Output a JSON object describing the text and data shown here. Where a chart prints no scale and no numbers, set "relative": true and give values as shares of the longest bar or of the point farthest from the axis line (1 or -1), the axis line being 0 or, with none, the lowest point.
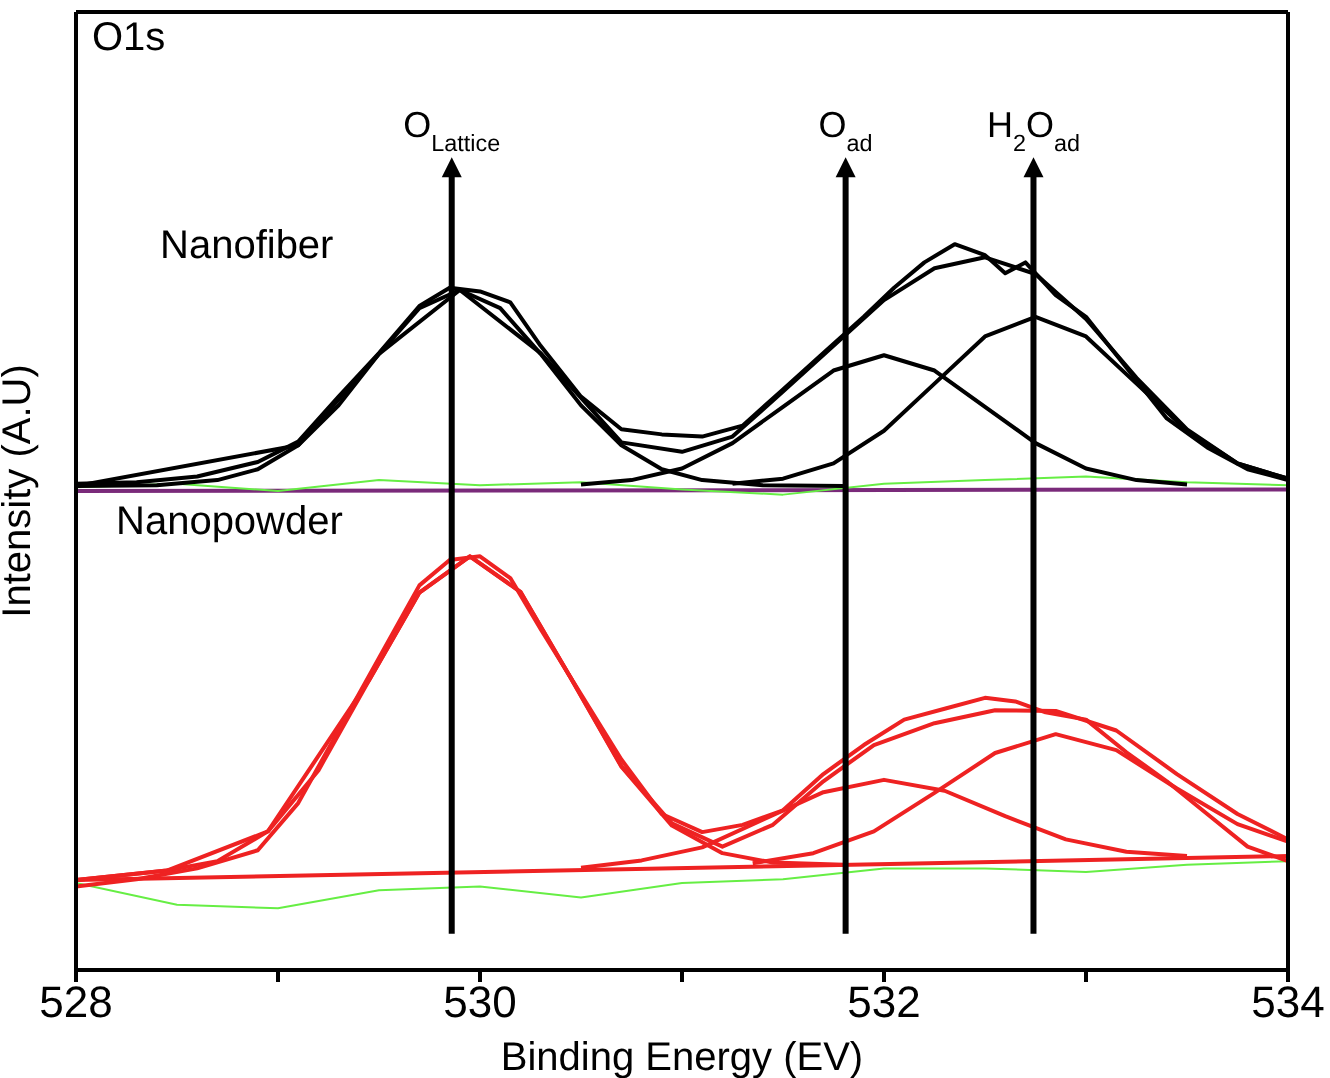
{
  "chart_data": {
    "type": "line",
    "relative": true,
    "xlabel": "Binding Energy (EV)",
    "ylabel": "Intensity (A.U)",
    "xlim": [
      528,
      534
    ],
    "xticks": [
      528,
      {
        "value": 529,
        "label": null
      },
      530,
      {
        "value": 531,
        "label": null
      },
      532,
      {
        "value": 533,
        "label": null
      },
      534
    ],
    "annotations": [
      "O1s",
      "Nanofiber",
      "Nanopowder"
    ],
    "ref_lines": [
      {
        "axis": "x",
        "value": 529.86,
        "label": "O$_{Lattice}$",
        "color": "#000000"
      },
      {
        "axis": "x",
        "value": 531.81,
        "label": "O$_{ad}$",
        "color": "#000000"
      },
      {
        "axis": "x",
        "value": 532.74,
        "label": "H$_{2}$O$_{ad}$",
        "color": "#000000"
      }
    ],
    "series": [
      {
        "color": "#7a2a7a",
        "x": [
          528,
          534
        ],
        "values": [
          0.66,
          0.662
        ]
      },
      {
        "color": "#66ee44",
        "x": [
          528,
          528.5,
          529,
          529.5,
          530,
          530.5,
          531,
          531.5,
          532,
          532.5,
          533,
          533.5,
          534
        ],
        "values": [
          0.665,
          0.67,
          0.66,
          0.675,
          0.668,
          0.672,
          0.662,
          0.655,
          0.67,
          0.675,
          0.68,
          0.672,
          0.668
        ]
      },
      {
        "color": "#66ee44",
        "x": [
          528,
          528.5,
          529,
          529.5,
          530,
          530.5,
          531,
          531.5,
          532,
          532.5,
          533,
          533.5,
          534
        ],
        "values": [
          0.12,
          0.09,
          0.085,
          0.11,
          0.115,
          0.1,
          0.12,
          0.125,
          0.14,
          0.14,
          0.135,
          0.145,
          0.15
        ]
      },
      {
        "color": "#000000",
        "x": [
          528,
          528.4,
          528.7,
          528.9,
          529.1,
          529.3,
          529.5,
          529.7,
          529.9,
          530.1,
          530.3,
          530.5,
          530.7,
          530.9,
          531.1,
          531.4,
          531.8
        ],
        "values": [
          0.667,
          0.668,
          0.675,
          0.69,
          0.723,
          0.778,
          0.849,
          0.912,
          0.937,
          0.912,
          0.849,
          0.778,
          0.723,
          0.69,
          0.675,
          0.668,
          0.667
        ]
      },
      {
        "color": "#000000",
        "x": [
          530.5,
          530.75,
          531,
          531.25,
          531.5,
          531.75,
          532,
          532.25,
          532.5,
          532.75,
          533,
          533.25,
          533.5
        ],
        "values": [
          0.669,
          0.675,
          0.691,
          0.726,
          0.776,
          0.826,
          0.847,
          0.826,
          0.776,
          0.726,
          0.691,
          0.675,
          0.669
        ]
      },
      {
        "color": "#000000",
        "x": [
          531.25,
          531.5,
          531.75,
          532,
          532.25,
          532.5,
          532.75,
          533,
          533.25,
          533.5,
          533.75,
          534
        ],
        "values": [
          0.67,
          0.677,
          0.698,
          0.743,
          0.808,
          0.873,
          0.9,
          0.873,
          0.808,
          0.743,
          0.698,
          0.677
        ]
      },
      {
        "color": "#000000",
        "x": [
          528,
          529.1,
          529.5,
          529.9,
          530.3,
          530.7,
          531,
          531.25,
          531.5,
          531.75,
          532,
          532.25,
          532.5,
          532.75,
          533,
          533.25,
          533.5,
          533.75,
          534
        ],
        "values": [
          0.667,
          0.723,
          0.849,
          0.937,
          0.85,
          0.727,
          0.714,
          0.735,
          0.797,
          0.86,
          0.923,
          0.967,
          0.982,
          0.959,
          0.897,
          0.816,
          0.745,
          0.698,
          0.677
        ]
      },
      {
        "color": "#000000",
        "x": [
          528,
          528.3,
          528.6,
          528.9,
          529.1,
          529.3,
          529.5,
          529.7,
          529.85,
          530,
          530.15,
          530.3,
          530.5,
          530.7,
          530.9,
          531.1,
          531.3,
          531.5,
          531.7,
          531.9,
          532.05,
          532.2,
          532.35,
          532.5,
          532.6,
          532.7,
          532.85,
          533,
          533.2,
          533.4,
          533.6,
          533.8,
          534
        ],
        "values": [
          0.67,
          0.672,
          0.68,
          0.7,
          0.728,
          0.79,
          0.85,
          0.915,
          0.94,
          0.935,
          0.92,
          0.86,
          0.79,
          0.745,
          0.738,
          0.735,
          0.75,
          0.8,
          0.85,
          0.9,
          0.94,
          0.975,
          1.0,
          0.985,
          0.96,
          0.975,
          0.93,
          0.9,
          0.83,
          0.76,
          0.72,
          0.69,
          0.675
        ]
      },
      {
        "color": "#ee2222",
        "x": [
          528,
          534
        ],
        "values": [
          0.124,
          0.157
        ]
      },
      {
        "color": "#ee2222",
        "x": [
          528,
          528.45,
          528.7,
          528.95,
          529.2,
          529.45,
          529.7,
          529.95,
          530.2,
          530.45,
          530.7,
          530.95,
          531.2,
          531.45,
          531.8
        ],
        "values": [
          0.124,
          0.137,
          0.15,
          0.191,
          0.275,
          0.399,
          0.52,
          0.57,
          0.521,
          0.402,
          0.28,
          0.199,
          0.161,
          0.148,
          0.145
        ]
      },
      {
        "color": "#ee2222",
        "x": [
          530.5,
          530.8,
          531.1,
          531.4,
          531.7,
          532,
          532.3,
          532.6,
          532.9,
          533.2,
          533.5
        ],
        "values": [
          0.141,
          0.151,
          0.169,
          0.207,
          0.245,
          0.262,
          0.247,
          0.212,
          0.18,
          0.163,
          0.157
        ]
      },
      {
        "color": "#ee2222",
        "x": [
          531.35,
          531.65,
          531.95,
          532.25,
          532.55,
          532.85,
          533.15,
          533.45,
          533.75,
          534
        ],
        "values": [
          0.147,
          0.161,
          0.191,
          0.244,
          0.299,
          0.325,
          0.303,
          0.25,
          0.201,
          0.177
        ]
      },
      {
        "color": "#ee2222",
        "x": [
          528,
          528.45,
          528.95,
          529.45,
          529.7,
          529.95,
          530.2,
          530.45,
          530.7,
          530.95,
          531.2,
          531.45,
          531.7,
          531.95,
          532.25,
          532.55,
          532.85,
          533.15,
          533.45,
          533.75,
          534
        ],
        "values": [
          0.124,
          0.137,
          0.191,
          0.399,
          0.52,
          0.57,
          0.521,
          0.402,
          0.281,
          0.202,
          0.17,
          0.2,
          0.26,
          0.31,
          0.34,
          0.358,
          0.357,
          0.33,
          0.27,
          0.215,
          0.18
        ]
      },
      {
        "color": "#ee2222",
        "x": [
          528,
          528.3,
          528.6,
          528.9,
          529.1,
          529.3,
          529.5,
          529.7,
          529.85,
          530,
          530.15,
          530.3,
          530.5,
          530.7,
          530.9,
          531.1,
          531.3,
          531.5,
          531.7,
          531.9,
          532.1,
          532.3,
          532.5,
          532.65,
          532.8,
          533,
          533.2,
          533.4,
          533.6,
          533.8,
          534
        ],
        "values": [
          0.115,
          0.125,
          0.14,
          0.165,
          0.23,
          0.33,
          0.43,
          0.53,
          0.565,
          0.57,
          0.54,
          0.47,
          0.38,
          0.29,
          0.215,
          0.19,
          0.2,
          0.22,
          0.27,
          0.31,
          0.345,
          0.36,
          0.375,
          0.37,
          0.355,
          0.345,
          0.3,
          0.26,
          0.215,
          0.17,
          0.15
        ]
      }
    ]
  }
}
